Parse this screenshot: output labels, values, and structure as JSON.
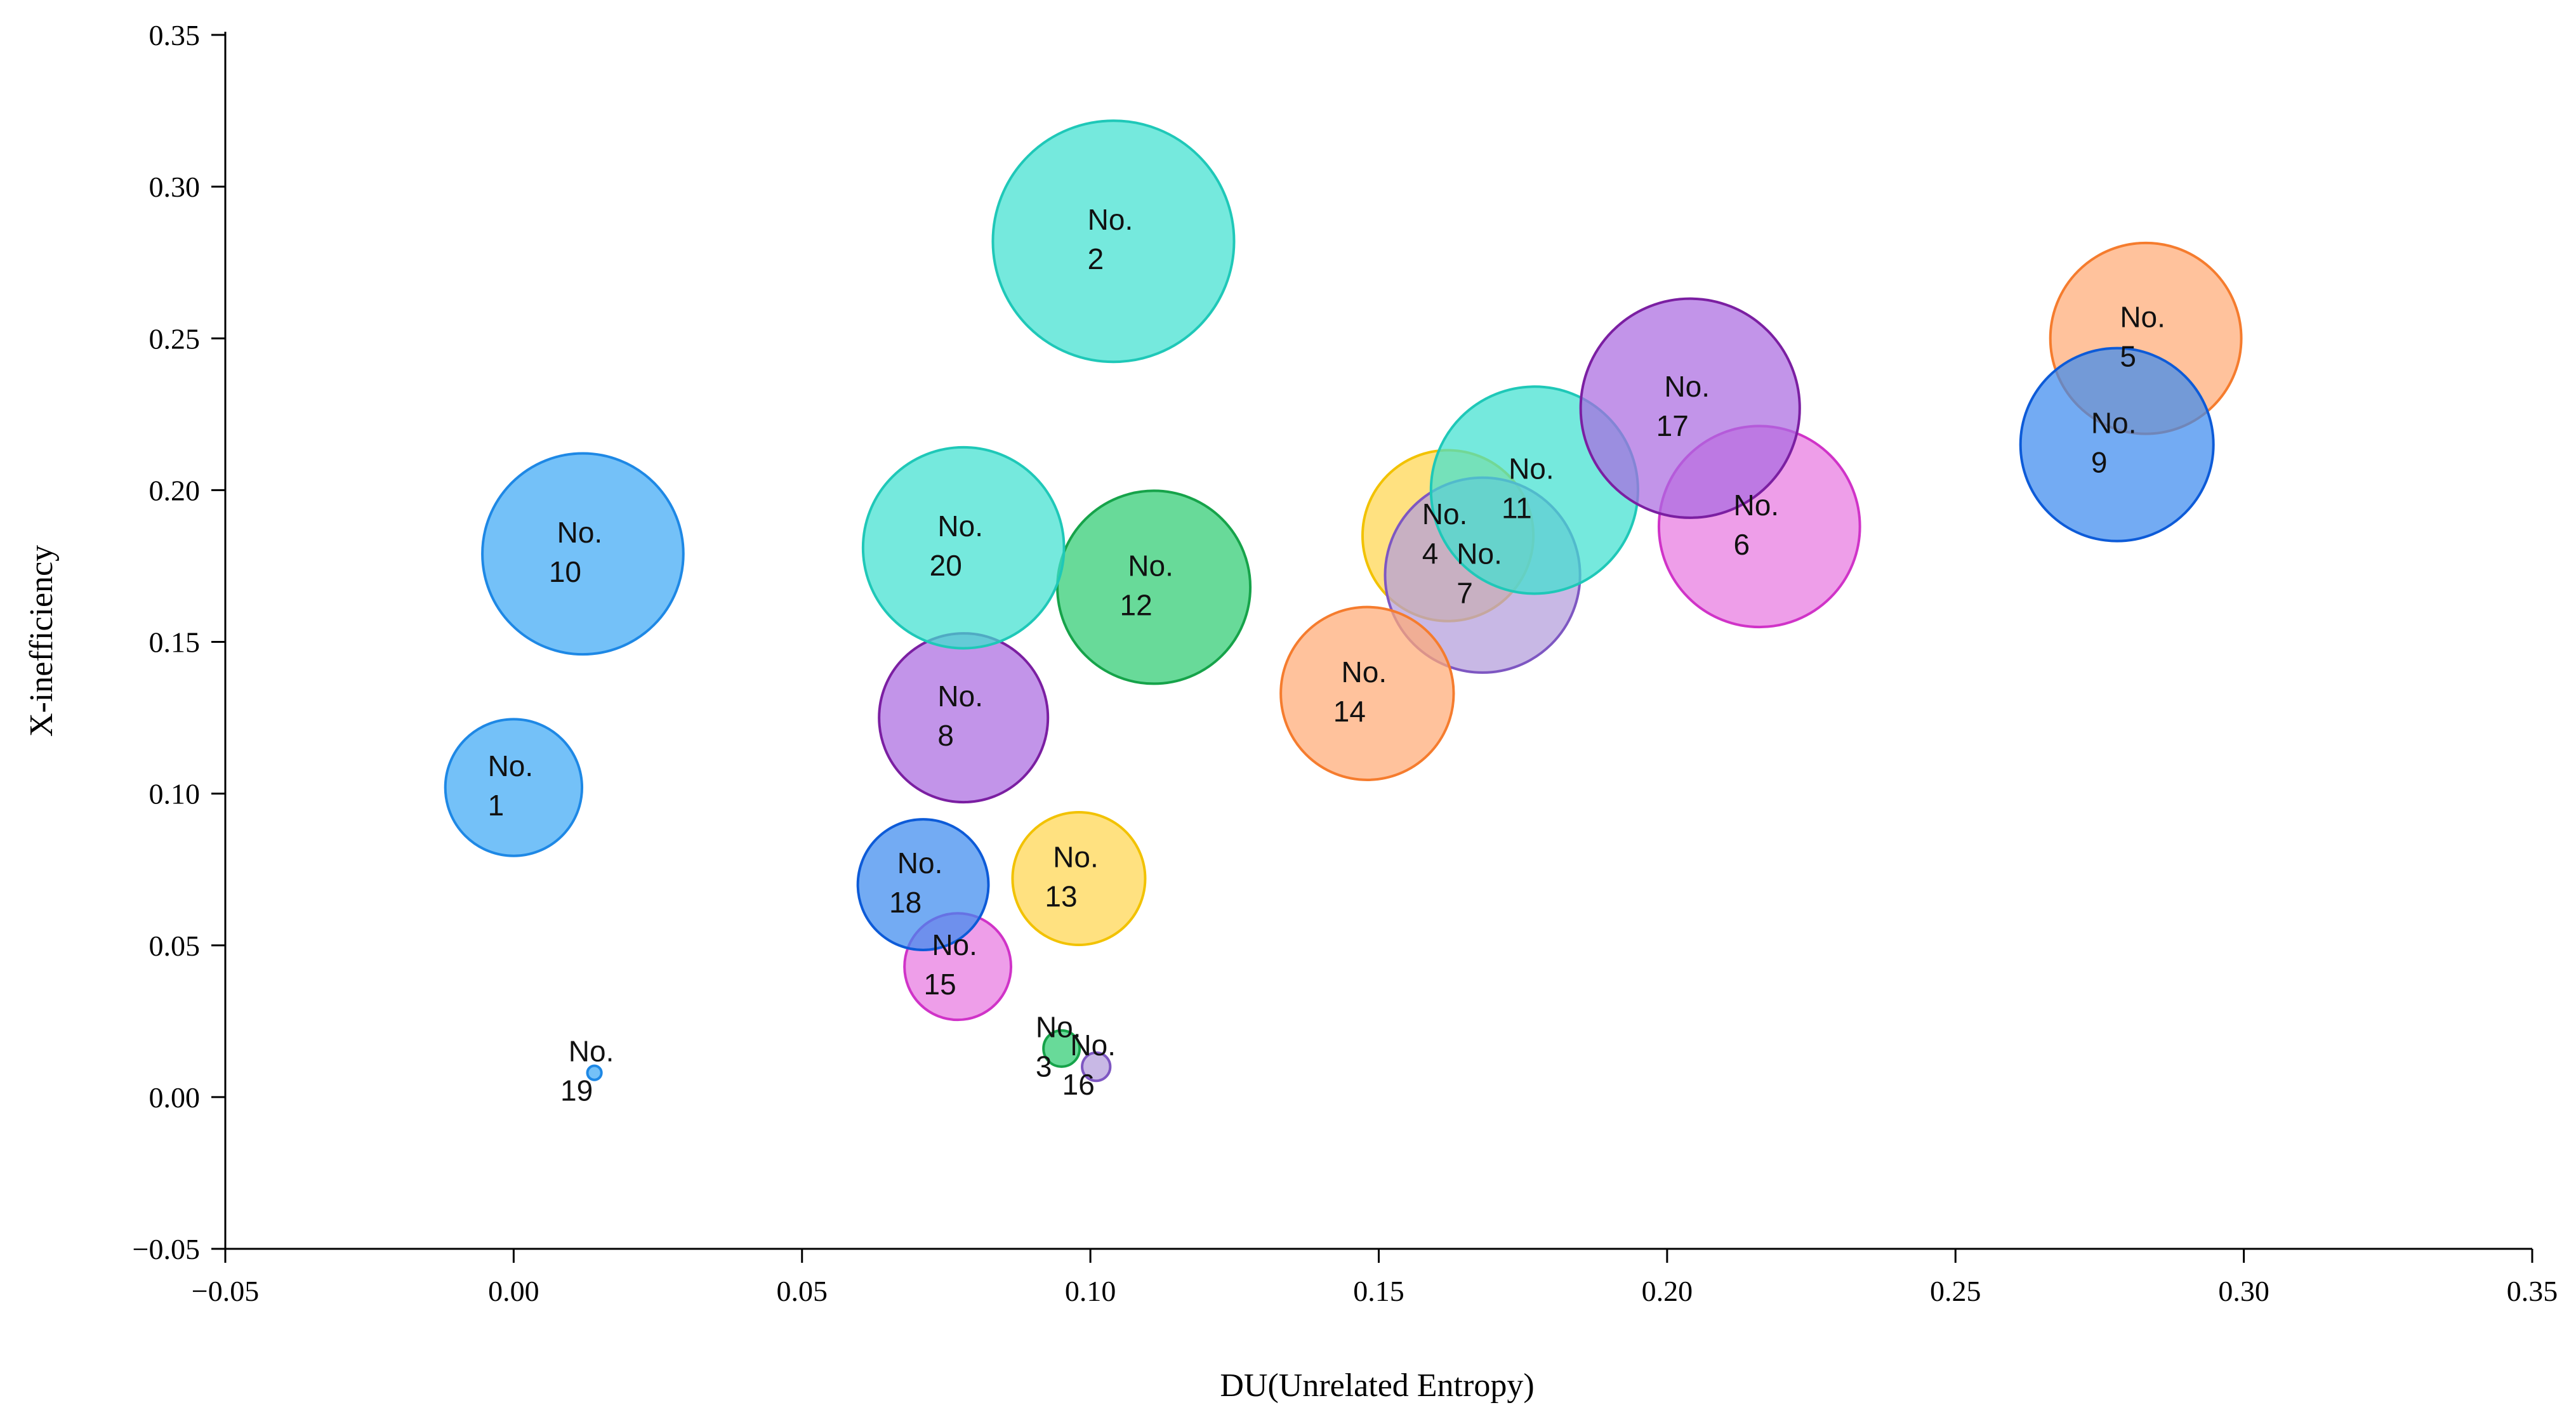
{
  "chart_data": {
    "type": "bubble",
    "title": "",
    "xlabel": "DU(Unrelated Entropy)",
    "ylabel": "X-inefficiency",
    "xlim": [
      -0.05,
      0.35
    ],
    "ylim": [
      -0.05,
      0.35
    ],
    "xticks": [
      "−0.05",
      "0.00",
      "0.05",
      "0.10",
      "0.15",
      "0.20",
      "0.25",
      "0.30",
      "0.35"
    ],
    "yticks": [
      "−0.05",
      "0.00",
      "0.05",
      "0.10",
      "0.15",
      "0.20",
      "0.25",
      "0.30",
      "0.35"
    ],
    "grid": false,
    "points": [
      {
        "label": "No.",
        "id": "1",
        "x": 0.0,
        "y": 0.102,
        "size": 0.68,
        "color": "#3fa9f5",
        "stroke": "#1e88e5"
      },
      {
        "label": "No.",
        "id": "2",
        "x": 0.104,
        "y": 0.282,
        "size": 1.2,
        "color": "#40e0d0",
        "stroke": "#1fc8b8"
      },
      {
        "label": "No.",
        "id": "3",
        "x": 0.095,
        "y": 0.016,
        "size": 0.18,
        "color": "#2ecc71",
        "stroke": "#16a34a"
      },
      {
        "label": "No.",
        "id": "4",
        "x": 0.162,
        "y": 0.185,
        "size": 0.85,
        "color": "#ffd54f",
        "stroke": "#f2c200"
      },
      {
        "label": "No.",
        "id": "5",
        "x": 0.283,
        "y": 0.25,
        "size": 0.95,
        "color": "#ffab76",
        "stroke": "#f57c2e"
      },
      {
        "label": "No.",
        "id": "6",
        "x": 0.216,
        "y": 0.188,
        "size": 1.0,
        "color": "#e879e0",
        "stroke": "#d033c8"
      },
      {
        "label": "No.",
        "id": "7",
        "x": 0.168,
        "y": 0.172,
        "size": 0.97,
        "color": "#b39ddb",
        "stroke": "#7e57c2"
      },
      {
        "label": "No.",
        "id": "8",
        "x": 0.078,
        "y": 0.125,
        "size": 0.84,
        "color": "#ab6be0",
        "stroke": "#7b1fa2"
      },
      {
        "label": "No.",
        "id": "9",
        "x": 0.278,
        "y": 0.215,
        "size": 0.96,
        "color": "#3d8bef",
        "stroke": "#0d5bd8"
      },
      {
        "label": "No.",
        "id": "10",
        "x": 0.012,
        "y": 0.179,
        "size": 1.0,
        "color": "#3fa9f5",
        "stroke": "#1e88e5"
      },
      {
        "label": "No.",
        "id": "11",
        "x": 0.177,
        "y": 0.2,
        "size": 1.03,
        "color": "#40e0d0",
        "stroke": "#1fc8b8"
      },
      {
        "label": "No.",
        "id": "12",
        "x": 0.111,
        "y": 0.168,
        "size": 0.96,
        "color": "#2ecc71",
        "stroke": "#16a34a"
      },
      {
        "label": "No.",
        "id": "13",
        "x": 0.098,
        "y": 0.072,
        "size": 0.66,
        "color": "#ffd54f",
        "stroke": "#f2c200"
      },
      {
        "label": "No.",
        "id": "14",
        "x": 0.148,
        "y": 0.133,
        "size": 0.86,
        "color": "#ffab76",
        "stroke": "#f57c2e"
      },
      {
        "label": "No.",
        "id": "15",
        "x": 0.077,
        "y": 0.043,
        "size": 0.53,
        "color": "#e879e0",
        "stroke": "#d033c8"
      },
      {
        "label": "No.",
        "id": "16",
        "x": 0.101,
        "y": 0.01,
        "size": 0.14,
        "color": "#b39ddb",
        "stroke": "#7e57c2"
      },
      {
        "label": "No.",
        "id": "17",
        "x": 0.204,
        "y": 0.227,
        "size": 1.09,
        "color": "#ab6be0",
        "stroke": "#7b1fa2"
      },
      {
        "label": "No.",
        "id": "18",
        "x": 0.071,
        "y": 0.07,
        "size": 0.65,
        "color": "#3d8bef",
        "stroke": "#0d5bd8"
      },
      {
        "label": "No.",
        "id": "19",
        "x": 0.014,
        "y": 0.008,
        "size": 0.07,
        "color": "#3fa9f5",
        "stroke": "#1e88e5"
      },
      {
        "label": "No.",
        "id": "20",
        "x": 0.078,
        "y": 0.181,
        "size": 1.0,
        "color": "#40e0d0",
        "stroke": "#1fc8b8"
      }
    ]
  }
}
